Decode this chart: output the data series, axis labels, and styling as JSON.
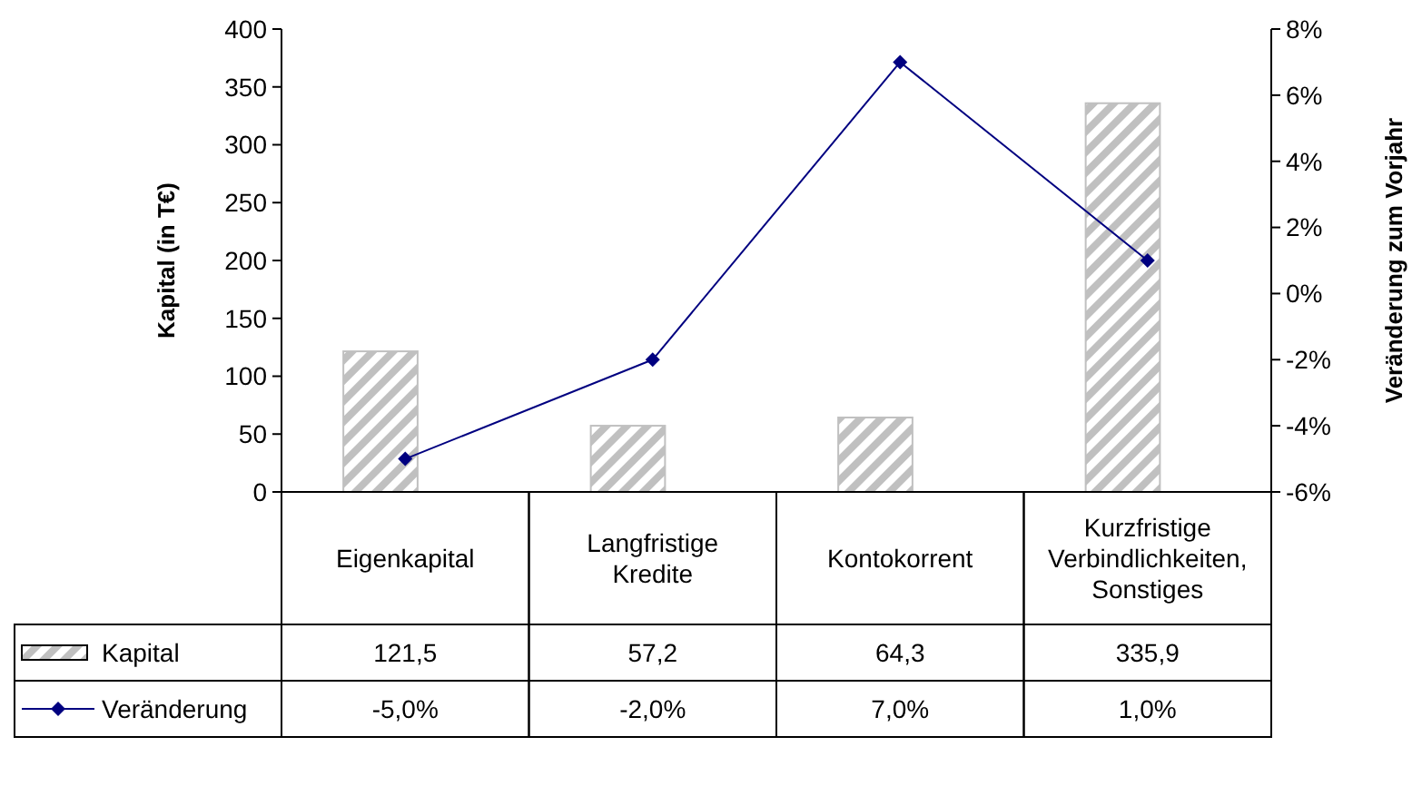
{
  "chart_data": {
    "type": "bar",
    "ylabel": "Kapital (in T€)",
    "y2label": "Veränderung zum Vorjahr",
    "categories": [
      "Eigenkapital",
      "Langfristige Kredite",
      "Kontokorrent",
      "Kurzfristige Verbindlichkeiten, Sonstiges"
    ],
    "series": [
      {
        "name": "Kapital",
        "color": "#c0c0c0",
        "values": [
          121.5,
          57.2,
          64.3,
          335.9
        ],
        "value_labels": [
          "121,5",
          "57,2",
          "64,3",
          "335,9"
        ]
      },
      {
        "name": "Veränderung",
        "type": "line",
        "axis": "y2",
        "color": "#000080",
        "marker": "diamond",
        "values": [
          -5.0,
          -2.0,
          7.0,
          1.0
        ],
        "value_labels": [
          "-5,0%",
          "-2,0%",
          "7,0%",
          "1,0%"
        ]
      }
    ],
    "ylim": [
      0,
      400
    ],
    "yticks": [
      0,
      50,
      100,
      150,
      200,
      250,
      300,
      350,
      400
    ],
    "y2lim": [
      -6,
      8
    ],
    "y2ticks": [
      {
        "value": -6,
        "label": "-6%"
      },
      {
        "value": -4,
        "label": "-4%"
      },
      {
        "value": -2,
        "label": "-2%"
      },
      {
        "value": 0,
        "label": "0%"
      },
      {
        "value": 2,
        "label": "2%"
      },
      {
        "value": 4,
        "label": "4%"
      },
      {
        "value": 6,
        "label": "6%"
      },
      {
        "value": 8,
        "label": "8%"
      }
    ],
    "legend": "bottom left",
    "grid": false
  }
}
